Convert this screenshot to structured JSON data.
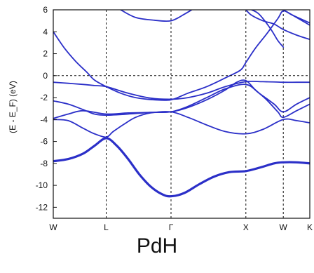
{
  "chart_data": {
    "type": "line",
    "title": "PdH",
    "xlabel": "",
    "ylabel": "(E - E_F) (eV)",
    "ylim": [
      -13,
      6
    ],
    "yticks": [
      6,
      4,
      2,
      0,
      -2,
      -4,
      -6,
      -8,
      -10,
      -12
    ],
    "grid": false,
    "fermi_level": 0,
    "k_points": [
      {
        "label": "W",
        "x": 0
      },
      {
        "label": "L",
        "x": 0.707
      },
      {
        "label": "Γ",
        "x": 1.573
      },
      {
        "label": "X",
        "x": 2.573
      },
      {
        "label": "W",
        "x": 3.073
      },
      {
        "label": "K",
        "x": 3.427
      }
    ],
    "series": [
      {
        "values": [
          [
            0,
            -7.8
          ],
          [
            0.2,
            -7.6
          ],
          [
            0.4,
            -7.1
          ],
          [
            0.55,
            -6.4
          ],
          [
            0.707,
            -5.7
          ],
          [
            0.85,
            -6.4
          ],
          [
            1.0,
            -7.6
          ],
          [
            1.15,
            -9.0
          ],
          [
            1.3,
            -10.1
          ],
          [
            1.45,
            -10.8
          ],
          [
            1.573,
            -11.0
          ],
          [
            1.75,
            -10.7
          ],
          [
            1.95,
            -9.9
          ],
          [
            2.15,
            -9.2
          ],
          [
            2.35,
            -8.8
          ],
          [
            2.573,
            -8.7
          ],
          [
            2.75,
            -8.4
          ],
          [
            2.95,
            -8.0
          ],
          [
            3.073,
            -7.9
          ],
          [
            3.25,
            -7.9
          ],
          [
            3.427,
            -8.0
          ]
        ]
      },
      {
        "values": [
          [
            0,
            -4.0
          ],
          [
            0.2,
            -4.1
          ],
          [
            0.4,
            -4.8
          ],
          [
            0.55,
            -5.3
          ],
          [
            0.707,
            -5.6
          ],
          [
            0.8,
            -5.1
          ],
          [
            0.95,
            -4.4
          ],
          [
            1.1,
            -3.8
          ],
          [
            1.3,
            -3.4
          ],
          [
            1.573,
            -3.3
          ],
          [
            1.8,
            -3.8
          ],
          [
            2.05,
            -4.5
          ],
          [
            2.3,
            -5.1
          ],
          [
            2.573,
            -5.3
          ],
          [
            2.8,
            -4.9
          ],
          [
            3.073,
            -4.0
          ],
          [
            3.25,
            -4.1
          ],
          [
            3.427,
            -4.3
          ]
        ]
      },
      {
        "values": [
          [
            0,
            -3.9
          ],
          [
            0.2,
            -3.5
          ],
          [
            0.4,
            -3.2
          ],
          [
            0.707,
            -3.5
          ],
          [
            1.0,
            -3.4
          ],
          [
            1.3,
            -3.35
          ],
          [
            1.573,
            -3.3
          ],
          [
            1.8,
            -2.9
          ],
          [
            2.05,
            -2.2
          ],
          [
            2.3,
            -1.3
          ],
          [
            2.45,
            -0.6
          ],
          [
            2.573,
            -0.45
          ],
          [
            2.7,
            -1.3
          ],
          [
            2.85,
            -2.2
          ],
          [
            3.0,
            -3.3
          ],
          [
            3.073,
            -3.8
          ],
          [
            3.25,
            -3.2
          ],
          [
            3.427,
            -2.6
          ]
        ]
      },
      {
        "values": [
          [
            0,
            -2.3
          ],
          [
            0.2,
            -2.6
          ],
          [
            0.4,
            -3.1
          ],
          [
            0.55,
            -3.5
          ],
          [
            0.707,
            -3.6
          ],
          [
            1.0,
            -3.5
          ],
          [
            1.3,
            -3.35
          ],
          [
            1.573,
            -3.3
          ],
          [
            1.8,
            -2.8
          ],
          [
            2.05,
            -2.0
          ],
          [
            2.3,
            -1.2
          ],
          [
            2.573,
            -0.8
          ],
          [
            2.75,
            -1.6
          ],
          [
            2.95,
            -2.6
          ],
          [
            3.073,
            -3.3
          ],
          [
            3.25,
            -2.6
          ],
          [
            3.427,
            -2.0
          ]
        ]
      },
      {
        "values": [
          [
            0,
            -0.6
          ],
          [
            0.2,
            -0.7
          ],
          [
            0.4,
            -0.8
          ],
          [
            0.55,
            -0.9
          ],
          [
            0.707,
            -1.0
          ],
          [
            1.0,
            -1.6
          ],
          [
            1.3,
            -2.05
          ],
          [
            1.573,
            -2.15
          ],
          [
            1.8,
            -2.0
          ],
          [
            2.05,
            -1.6
          ],
          [
            2.3,
            -1.0
          ],
          [
            2.573,
            -0.55
          ],
          [
            2.8,
            -0.55
          ],
          [
            3.073,
            -0.6
          ],
          [
            3.25,
            -0.6
          ],
          [
            3.427,
            -0.6
          ]
        ]
      },
      {
        "values": [
          [
            0,
            4.0
          ],
          [
            0.15,
            2.5
          ],
          [
            0.3,
            1.3
          ],
          [
            0.45,
            0.3
          ],
          [
            0.55,
            -0.4
          ],
          [
            0.707,
            -1.0
          ],
          [
            0.9,
            -1.6
          ],
          [
            1.1,
            -2.0
          ],
          [
            1.35,
            -2.2
          ],
          [
            1.573,
            -2.2
          ],
          [
            1.8,
            -1.6
          ],
          [
            2.05,
            -1.0
          ],
          [
            2.3,
            -0.2
          ],
          [
            2.5,
            0.5
          ],
          [
            2.573,
            1.2
          ],
          [
            2.7,
            2.5
          ],
          [
            2.85,
            3.8
          ],
          [
            3.0,
            5.2
          ],
          [
            3.073,
            5.9
          ],
          [
            3.2,
            5.5
          ],
          [
            3.427,
            4.8
          ]
        ]
      },
      {
        "values": [
          [
            0.9,
            6.0
          ],
          [
            1.1,
            5.3
          ],
          [
            1.35,
            5.05
          ],
          [
            1.573,
            5.0
          ],
          [
            1.75,
            5.6
          ],
          [
            1.85,
            6.0
          ]
        ]
      },
      {
        "values": [
          [
            2.573,
            6.0
          ],
          [
            2.65,
            5.5
          ],
          [
            2.8,
            5.0
          ],
          [
            2.95,
            4.7
          ],
          [
            3.073,
            4.2
          ],
          [
            3.25,
            3.7
          ],
          [
            3.427,
            3.3
          ]
        ]
      },
      {
        "values": [
          [
            2.65,
            6.0
          ],
          [
            2.75,
            5.6
          ],
          [
            2.9,
            4.3
          ],
          [
            3.0,
            3.2
          ],
          [
            3.073,
            2.6
          ]
        ]
      },
      {
        "values": [
          [
            3.073,
            6.0
          ],
          [
            3.2,
            5.5
          ],
          [
            3.427,
            4.6
          ]
        ]
      }
    ]
  }
}
